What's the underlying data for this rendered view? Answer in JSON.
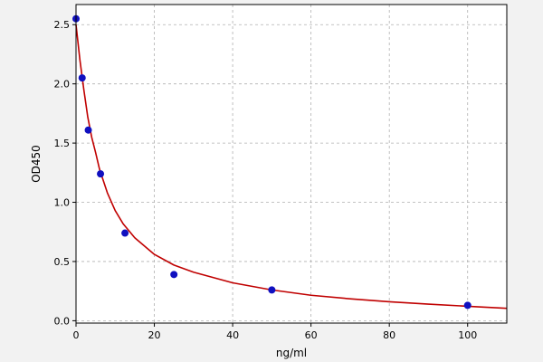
{
  "chart_data": {
    "type": "scatter",
    "title": "",
    "xlabel": "ng/ml",
    "ylabel": "OD450",
    "xlim": [
      0,
      110
    ],
    "ylim": [
      -0.02,
      2.67
    ],
    "x_ticks": [
      0,
      20,
      40,
      60,
      80,
      100
    ],
    "y_ticks": [
      0.0,
      0.5,
      1.0,
      1.5,
      2.0,
      2.5
    ],
    "x_tick_labels": [
      "0",
      "20",
      "40",
      "60",
      "80",
      "100"
    ],
    "y_tick_labels": [
      "0.0",
      "0.5",
      "1.0",
      "1.5",
      "2.0",
      "2.5"
    ],
    "grid": true,
    "series": [
      {
        "kind": "points",
        "x": [
          0,
          1.56,
          3.13,
          6.25,
          12.5,
          25,
          50,
          100
        ],
        "y": [
          2.55,
          2.05,
          1.61,
          1.24,
          0.74,
          0.39,
          0.26,
          0.13
        ]
      },
      {
        "kind": "fit-curve",
        "x": [
          0,
          1,
          2,
          3,
          4,
          5,
          6,
          8,
          10,
          12,
          15,
          20,
          25,
          30,
          40,
          50,
          60,
          70,
          80,
          90,
          100,
          110
        ],
        "y": [
          2.5,
          2.2,
          1.95,
          1.72,
          1.55,
          1.42,
          1.28,
          1.08,
          0.93,
          0.82,
          0.7,
          0.56,
          0.47,
          0.41,
          0.32,
          0.26,
          0.215,
          0.185,
          0.16,
          0.14,
          0.122,
          0.105
        ]
      }
    ],
    "colors": {
      "points": "#1010c0",
      "curve": "#c00000",
      "grid": "#b0b0b0",
      "plot_bg": "#ffffff",
      "page_bg": "#f2f2f2"
    }
  }
}
